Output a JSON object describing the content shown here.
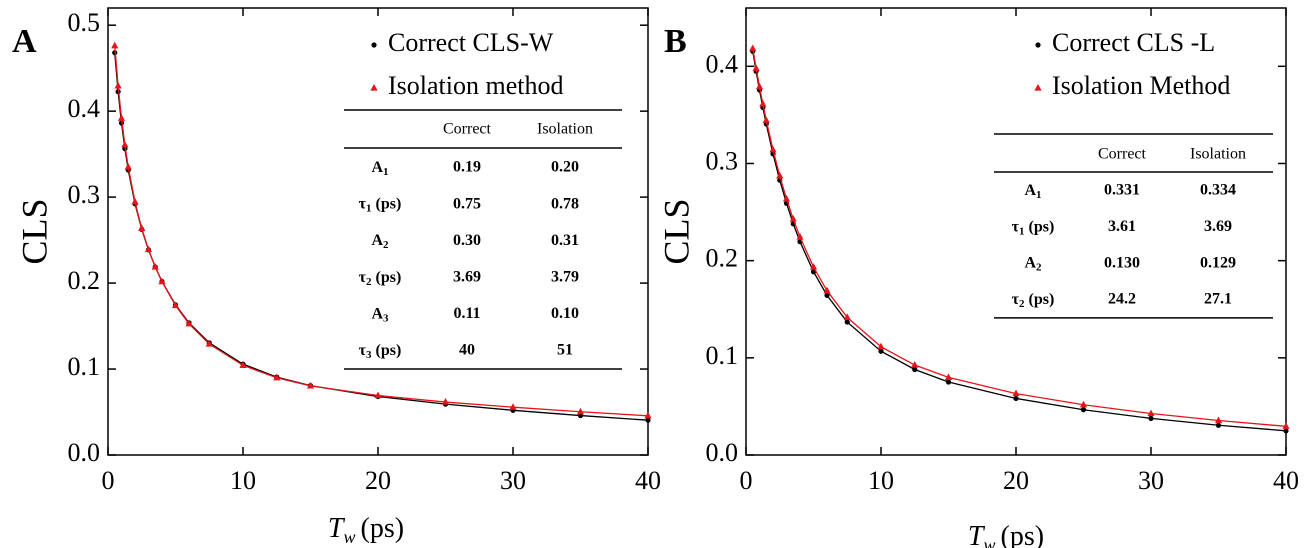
{
  "chart_data": [
    {
      "type": "scatter",
      "panel_label": "A",
      "ylabel": "CLS",
      "xlabel": {
        "symbol": "T",
        "sub": "w",
        "unit": "(ps)"
      },
      "xlim": [
        0,
        40
      ],
      "ylim": [
        0,
        0.52
      ],
      "xticks": [
        0,
        10,
        20,
        30,
        40
      ],
      "yticks": [
        {
          "value": 0,
          "label": "0.0"
        },
        0.1,
        0.2,
        0.3,
        0.4,
        0.5
      ],
      "x": [
        0.5,
        0.75,
        1,
        1.25,
        1.5,
        2,
        2.5,
        3,
        3.5,
        4,
        5,
        6,
        7.5,
        10,
        12.5,
        15,
        20,
        25,
        30,
        35,
        40
      ],
      "series": [
        {
          "name": "Correct CLS-W",
          "color": "#000000",
          "marker": "circle",
          "values": [
            0.468,
            0.4227,
            0.3862,
            0.3563,
            0.3315,
            0.2923,
            0.2625,
            0.2386,
            0.2188,
            0.2019,
            0.1747,
            0.1537,
            0.1305,
            0.1057,
            0.0906,
            0.0807,
            0.068,
            0.0592,
            0.052,
            0.0459,
            0.0405
          ]
        },
        {
          "name": "Isolation method",
          "color": "#e8141b",
          "marker": "triangle",
          "values": [
            0.4761,
            0.4294,
            0.3917,
            0.3608,
            0.335,
            0.2944,
            0.2636,
            0.2391,
            0.2187,
            0.2016,
            0.1739,
            0.1526,
            0.1291,
            0.1043,
            0.0898,
            0.0804,
            0.0692,
            0.0616,
            0.0556,
            0.0503,
            0.0456
          ]
        }
      ],
      "table": {
        "columns": [
          "Correct",
          "Isolation"
        ],
        "rows": [
          {
            "label": {
              "symbol": "A",
              "sub": "1"
            },
            "cells": [
              "0.19",
              "0.20"
            ]
          },
          {
            "label": {
              "symbol": "τ",
              "sub": "1",
              "unit": "(ps)"
            },
            "cells": [
              "0.75",
              "0.78"
            ]
          },
          {
            "label": {
              "symbol": "A",
              "sub": "2"
            },
            "cells": [
              "0.30",
              "0.31"
            ]
          },
          {
            "label": {
              "symbol": "τ",
              "sub": "2",
              "unit": "(ps)"
            },
            "cells": [
              "3.69",
              "3.79"
            ]
          },
          {
            "label": {
              "symbol": "A",
              "sub": "3"
            },
            "cells": [
              "0.11",
              "0.10"
            ]
          },
          {
            "label": {
              "symbol": "τ",
              "sub": "3",
              "unit": "(ps)"
            },
            "cells": [
              "40",
              "51"
            ]
          }
        ]
      }
    },
    {
      "type": "scatter",
      "panel_label": "B",
      "ylabel": "CLS",
      "xlabel": {
        "symbol": "T",
        "sub": "w",
        "unit": "(ps)"
      },
      "xlim": [
        0,
        40
      ],
      "ylim": [
        0,
        0.46
      ],
      "xticks": [
        0,
        10,
        20,
        30,
        40
      ],
      "yticks": [
        {
          "value": 0,
          "label": "0.0"
        },
        0.1,
        0.2,
        0.3,
        0.4
      ],
      "x": [
        0.5,
        0.75,
        1,
        1.25,
        1.5,
        2,
        2.5,
        3,
        3.5,
        4,
        5,
        6,
        7.5,
        10,
        12.5,
        15,
        20,
        25,
        30,
        35,
        40
      ],
      "series": [
        {
          "name": "Correct CLS -L",
          "color": "#000000",
          "marker": "circle",
          "values": [
            0.4155,
            0.3949,
            0.3756,
            0.3576,
            0.3407,
            0.3099,
            0.2828,
            0.259,
            0.238,
            0.2195,
            0.1886,
            0.1643,
            0.1368,
            0.1068,
            0.088,
            0.0751,
            0.0582,
            0.0466,
            0.0377,
            0.0306,
            0.0249
          ]
        },
        {
          "name": "Isolation Method",
          "color": "#e8141b",
          "marker": "triangle",
          "values": [
            0.4183,
            0.398,
            0.379,
            0.3612,
            0.3444,
            0.3141,
            0.2872,
            0.2636,
            0.2428,
            0.2243,
            0.1934,
            0.1691,
            0.1416,
            0.1114,
            0.0926,
            0.0799,
            0.0632,
            0.0517,
            0.0427,
            0.0355,
            0.0295
          ]
        }
      ],
      "table": {
        "columns": [
          "Correct",
          "Isolation"
        ],
        "rows": [
          {
            "label": {
              "symbol": "A",
              "sub": "1"
            },
            "cells": [
              "0.331",
              "0.334"
            ]
          },
          {
            "label": {
              "symbol": "τ",
              "sub": "1",
              "unit": "(ps)"
            },
            "cells": [
              "3.61",
              "3.69"
            ]
          },
          {
            "label": {
              "symbol": "A",
              "sub": "2"
            },
            "cells": [
              "0.130",
              "0.129"
            ]
          },
          {
            "label": {
              "symbol": "τ",
              "sub": "2",
              "unit": "(ps)"
            },
            "cells": [
              "24.2",
              "27.1"
            ]
          }
        ]
      }
    }
  ]
}
